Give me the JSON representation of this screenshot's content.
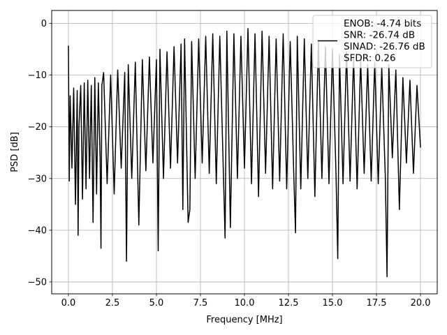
{
  "chart_data": {
    "type": "line",
    "title": "",
    "xlabel": "Frequency [MHz]",
    "ylabel": "PSD [dB]",
    "xlim": [
      -0.95,
      20.95
    ],
    "ylim": [
      -52.3,
      2.5
    ],
    "xticks": [
      0.0,
      2.5,
      5.0,
      7.5,
      10.0,
      12.5,
      15.0,
      17.5,
      20.0
    ],
    "xtick_labels": [
      "0.0",
      "2.5",
      "5.0",
      "7.5",
      "10.0",
      "12.5",
      "15.0",
      "17.5",
      "20.0"
    ],
    "yticks": [
      0,
      -10,
      -20,
      -30,
      -40,
      -50
    ],
    "ytick_labels": [
      "0",
      "−10",
      "−20",
      "−30",
      "−40",
      "−50"
    ],
    "grid": true,
    "legend_position": "top-right",
    "legend": [
      "ENOB: -4.74 bits",
      "SNR: -26.74 dB",
      "SINAD: -26.76 dB",
      "SFDR: 0.26"
    ],
    "series": [
      {
        "color": "#000000",
        "x": [
          0.0,
          0.05,
          0.1,
          0.2,
          0.3,
          0.4,
          0.5,
          0.55,
          0.6,
          0.7,
          0.8,
          0.9,
          1.0,
          1.1,
          1.2,
          1.3,
          1.4,
          1.5,
          1.6,
          1.7,
          1.8,
          1.85,
          1.9,
          2.0,
          2.2,
          2.4,
          2.6,
          2.8,
          3.0,
          3.2,
          3.3,
          3.4,
          3.6,
          3.8,
          4.0,
          4.2,
          4.4,
          4.6,
          4.8,
          5.0,
          5.1,
          5.2,
          5.4,
          5.6,
          5.8,
          6.0,
          6.2,
          6.4,
          6.5,
          6.6,
          6.8,
          6.9,
          7.0,
          7.2,
          7.4,
          7.6,
          7.8,
          8.0,
          8.2,
          8.4,
          8.6,
          8.8,
          8.9,
          9.0,
          9.2,
          9.4,
          9.6,
          9.8,
          10.0,
          10.2,
          10.4,
          10.6,
          10.8,
          11.0,
          11.2,
          11.4,
          11.6,
          11.8,
          12.0,
          12.2,
          12.4,
          12.6,
          12.8,
          12.9,
          13.0,
          13.2,
          13.4,
          13.6,
          13.8,
          14.0,
          14.2,
          14.4,
          14.6,
          14.8,
          15.0,
          15.2,
          15.3,
          15.4,
          15.6,
          15.8,
          16.0,
          16.2,
          16.4,
          16.6,
          16.8,
          17.0,
          17.2,
          17.4,
          17.6,
          17.8,
          18.0,
          18.1,
          18.2,
          18.4,
          18.6,
          18.8,
          19.0,
          19.2,
          19.4,
          19.6,
          19.8,
          20.0
        ],
        "y": [
          -4.3,
          -30.5,
          -14.0,
          -28.0,
          -12.5,
          -35.0,
          -13.0,
          -41.0,
          -20.0,
          -12.0,
          -34.0,
          -11.5,
          -32.0,
          -11.0,
          -30.0,
          -12.0,
          -38.5,
          -10.5,
          -33.0,
          -11.5,
          -26.0,
          -43.5,
          -12.0,
          -9.5,
          -31.0,
          -10.0,
          -33.0,
          -9.0,
          -28.0,
          -9.5,
          -46.0,
          -8.0,
          -30.0,
          -7.5,
          -39.0,
          -7.0,
          -28.5,
          -6.5,
          -27.0,
          -7.0,
          -44.0,
          -5.0,
          -30.0,
          -5.5,
          -28.0,
          -4.5,
          -27.0,
          -4.0,
          -36.0,
          -3.0,
          -38.5,
          -36.0,
          -3.5,
          -30.0,
          -3.0,
          -27.0,
          -2.5,
          -29.0,
          -2.0,
          -31.0,
          -2.5,
          -28.5,
          -41.5,
          -1.5,
          -39.5,
          -2.0,
          -30.0,
          -2.5,
          -28.0,
          -1.0,
          -31.0,
          -2.0,
          -33.5,
          -1.5,
          -29.0,
          -2.5,
          -32.0,
          -3.0,
          -30.5,
          -2.0,
          -32.0,
          -3.5,
          -29.0,
          -40.5,
          -2.5,
          -32.0,
          -3.0,
          -30.0,
          -4.0,
          -33.5,
          -3.5,
          -30.0,
          -4.5,
          -31.0,
          -5.0,
          -29.0,
          -45.5,
          -6.0,
          -31.0,
          -5.5,
          -30.5,
          -6.5,
          -32.0,
          -7.0,
          -29.0,
          -8.0,
          -30.5,
          -7.5,
          -31.0,
          -8.5,
          -29.5,
          -49.0,
          -8.0,
          -26.0,
          -9.0,
          -36.0,
          -10.5,
          -27.0,
          -11.0,
          -29.0,
          -12.0,
          -24.0
        ]
      }
    ]
  }
}
